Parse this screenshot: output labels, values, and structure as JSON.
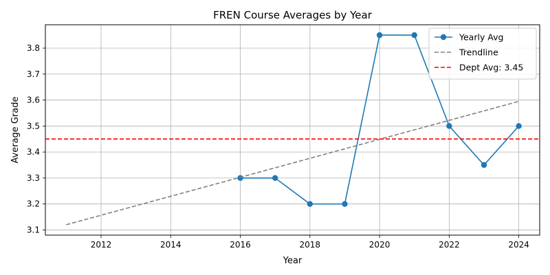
{
  "chart_data": {
    "type": "line",
    "title": "FREN Course Averages by Year",
    "xlabel": "Year",
    "ylabel": "Average Grade",
    "xlim": [
      2010.4,
      2024.6
    ],
    "ylim": [
      3.08,
      3.89
    ],
    "xticks": [
      2012,
      2014,
      2016,
      2018,
      2020,
      2022,
      2024
    ],
    "yticks": [
      3.1,
      3.2,
      3.3,
      3.4,
      3.5,
      3.6,
      3.7,
      3.8
    ],
    "grid": true,
    "legend_position": "top-right",
    "series": [
      {
        "name": "Yearly Avg",
        "style": "solid-with-markers",
        "color": "#1f77b4",
        "x": [
          2016,
          2017,
          2018,
          2019,
          2020,
          2021,
          2022,
          2023,
          2024
        ],
        "y": [
          3.3,
          3.3,
          3.2,
          3.2,
          3.85,
          3.85,
          3.5,
          3.35,
          3.5
        ]
      },
      {
        "name": "Trendline",
        "style": "dashed",
        "color": "#808080",
        "x": [
          2011,
          2024
        ],
        "y": [
          3.12,
          3.595
        ]
      },
      {
        "name": "Dept Avg: 3.45",
        "style": "dashed-horizontal",
        "color": "#ff0000",
        "y": 3.45
      }
    ]
  }
}
